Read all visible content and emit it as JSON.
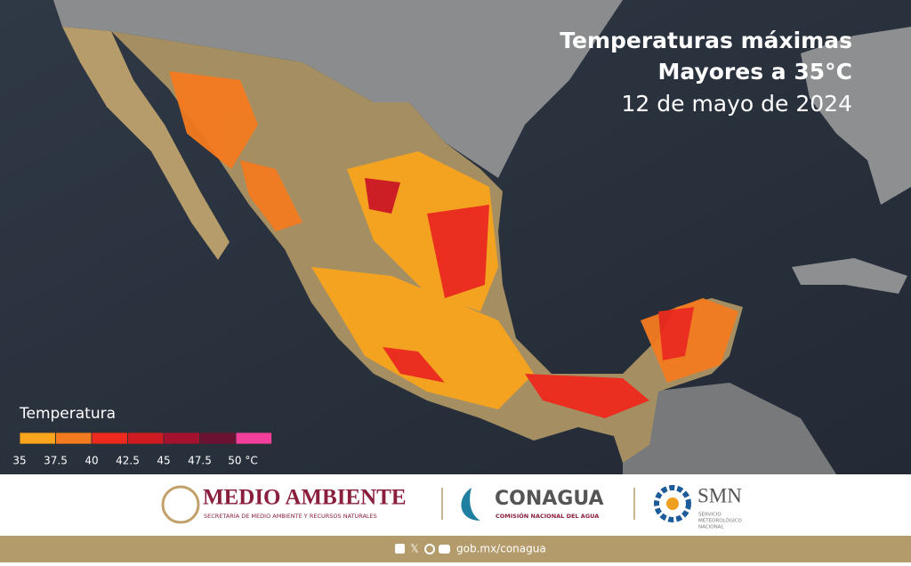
{
  "header": {
    "title": "Temperaturas máximas",
    "subtitle": "Mayores a 35°C",
    "date": "12 de mayo de 2024"
  },
  "legend": {
    "title": "Temperatura",
    "ticks": [
      35,
      37.5,
      40,
      42.5,
      45,
      47.5,
      {
        "value": 50,
        "label": "50 °C"
      }
    ],
    "colors": [
      "#f9a51d",
      "#f47a1f",
      "#ee2a1e",
      "#cf1a22",
      "#a5122f",
      "#6b1232",
      "#f23f9c"
    ]
  },
  "footer": {
    "semarnat": {
      "name": "MEDIO AMBIENTE",
      "subtitle": "SECRETARÍA DE MEDIO AMBIENTE Y RECURSOS NATURALES"
    },
    "conagua": {
      "name": "CONAGUA",
      "subtitle": "COMISIÓN NACIONAL DEL AGUA"
    },
    "smn": {
      "name": "SMN",
      "subtitle_lines": [
        "SERVICIO",
        "METEOROLÓGICO",
        "NACIONAL"
      ]
    },
    "url": "gob.mx/conagua"
  }
}
